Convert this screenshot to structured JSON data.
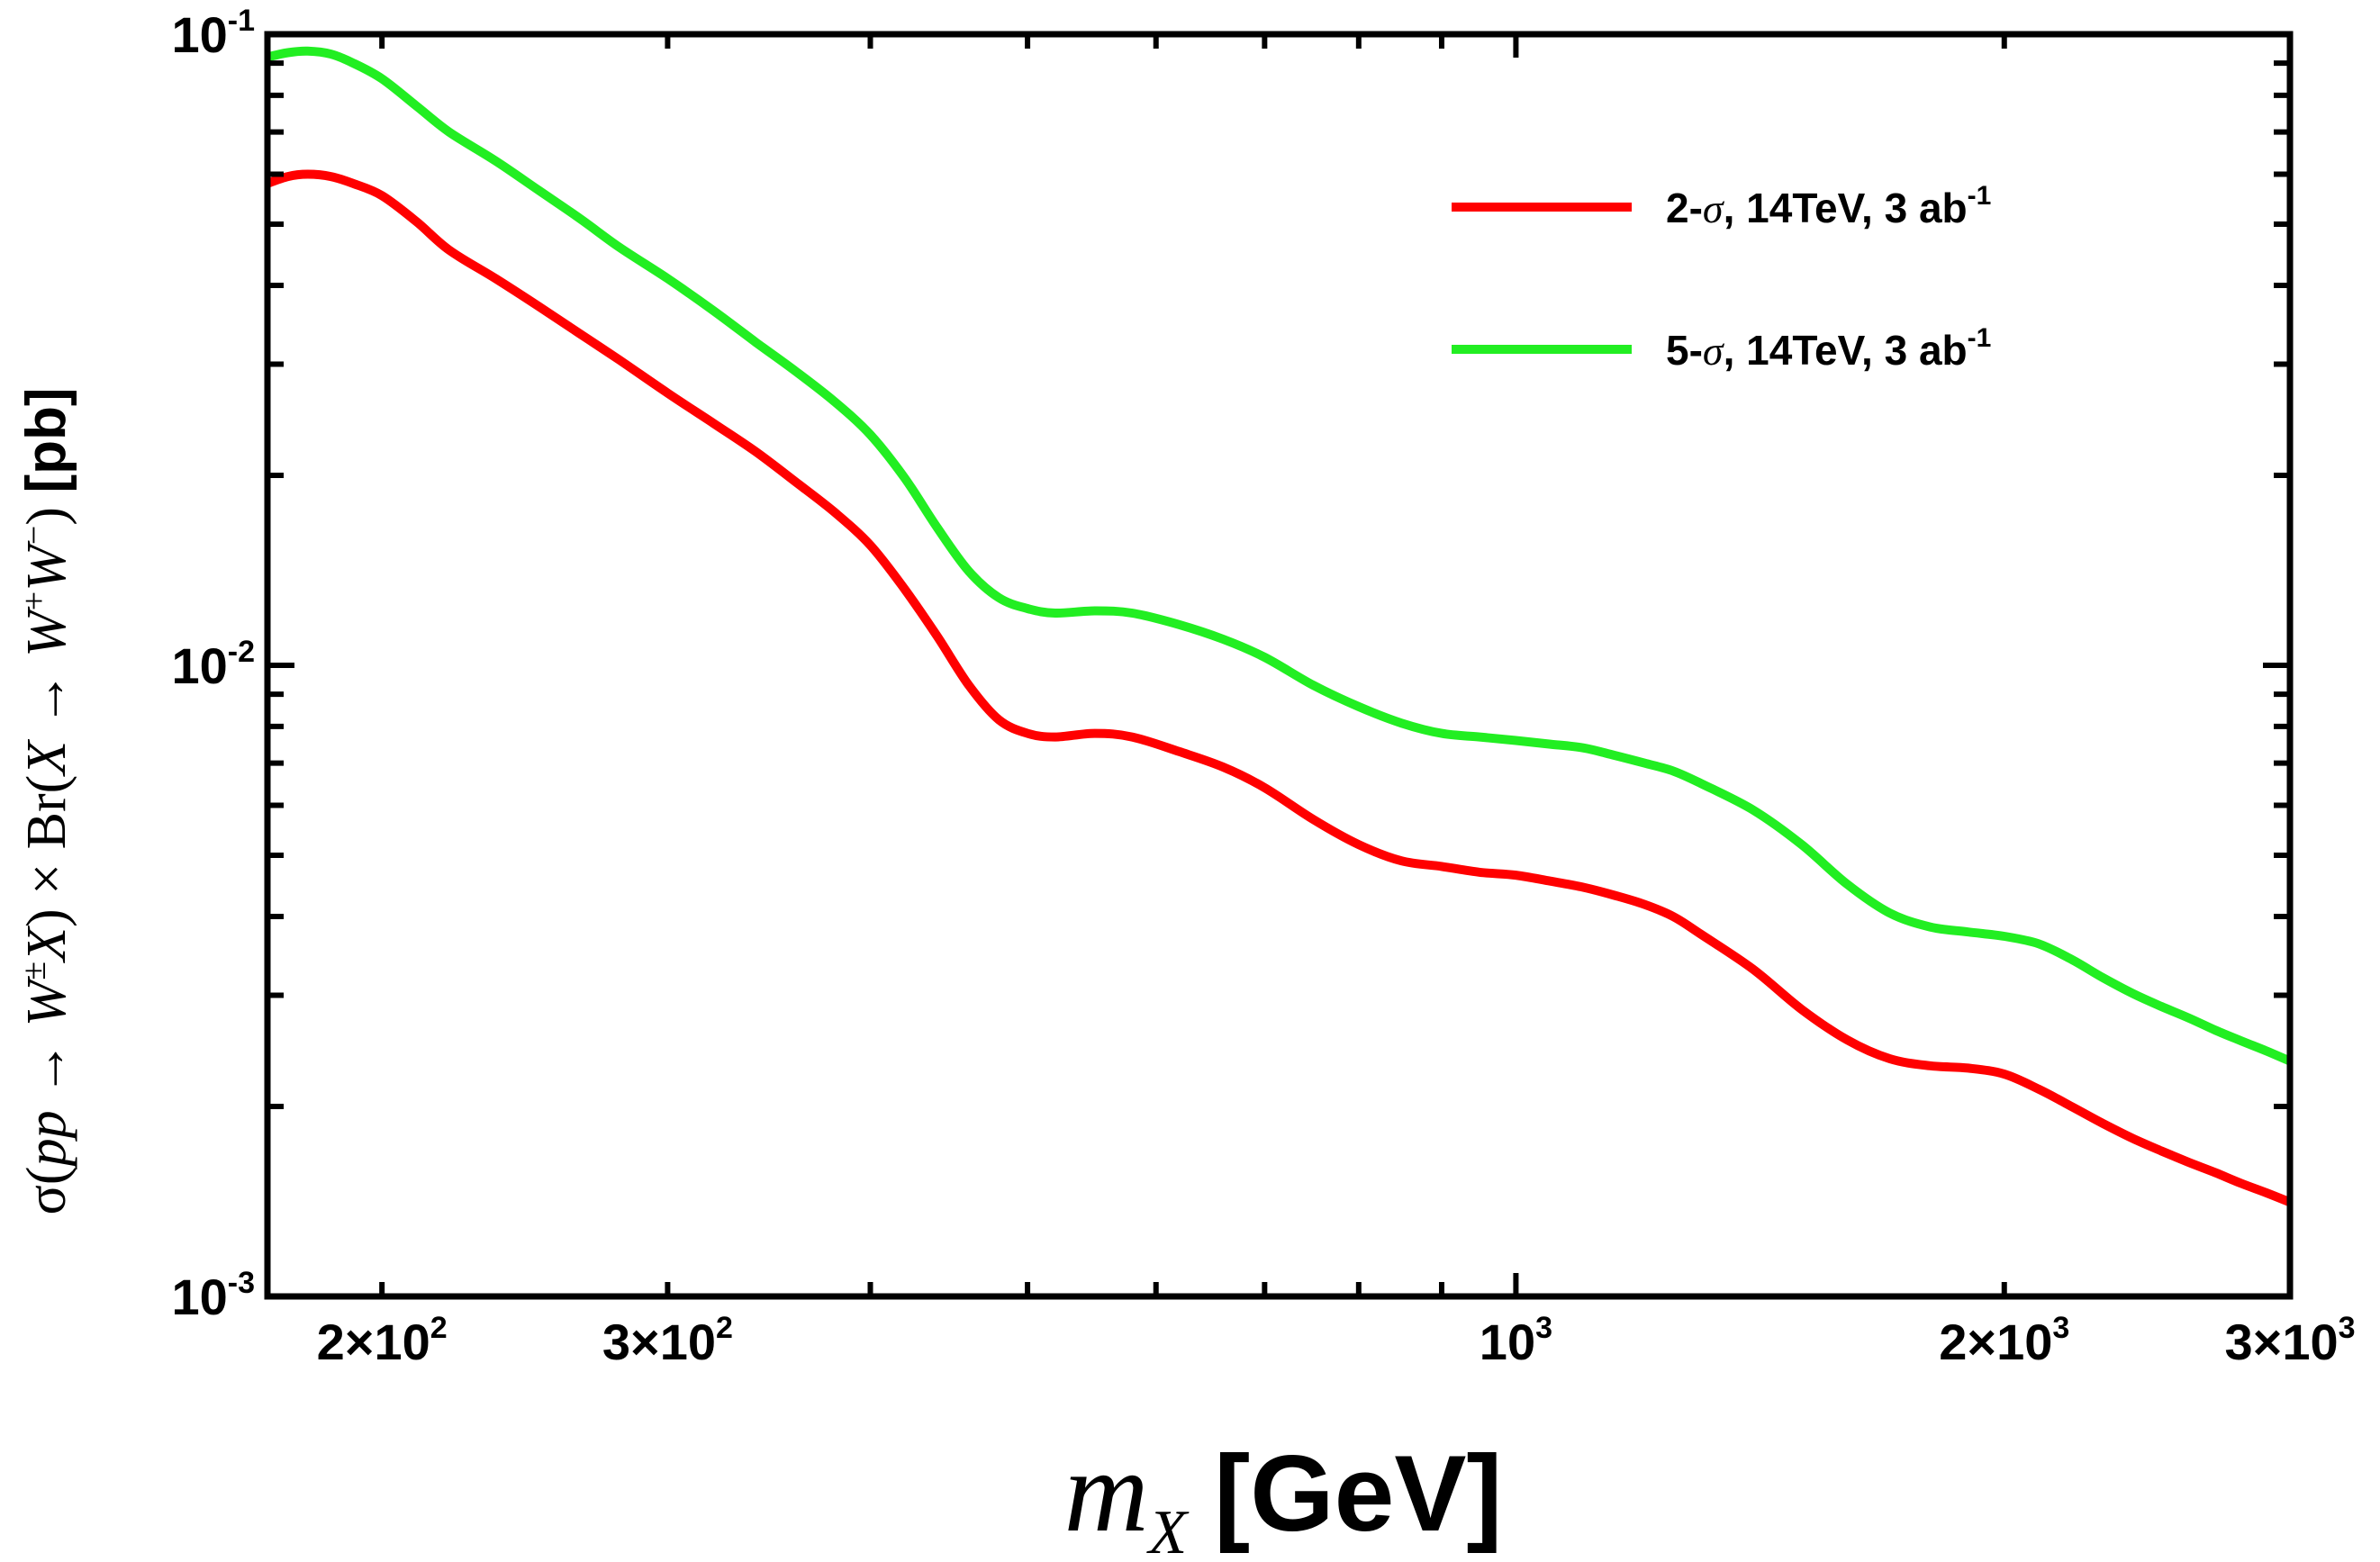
{
  "chart_data": {
    "type": "line",
    "xscale": "log",
    "yscale": "log",
    "xlim": [
      170,
      3000
    ],
    "ylim": [
      0.001,
      0.1
    ],
    "xlabel": {
      "var": "m",
      "sub": "X",
      "unit": "[GeV]"
    },
    "ylabel": {
      "p1": "σ(",
      "p2": "pp",
      "p3": " → ",
      "p4": "W",
      "p5": "±",
      "p6": "X",
      "p7": ")",
      "p8": " × Br(",
      "p9": "X",
      "p10": " → ",
      "p11": "W",
      "p12": "+",
      "p13": "W",
      "p14": "−",
      "p15": ") ",
      "p16": "[pb]"
    },
    "x_ticks": [
      {
        "value": 200,
        "mant": "2×10",
        "exp": "2"
      },
      {
        "value": 300,
        "mant": "3×10",
        "exp": "2"
      },
      {
        "value": 1000,
        "mant": "10",
        "exp": "3"
      },
      {
        "value": 2000,
        "mant": "2×10",
        "exp": "3"
      },
      {
        "value": 3000,
        "mant": "3×10",
        "exp": "3"
      }
    ],
    "y_ticks": [
      {
        "value": 0.1,
        "mant": "10",
        "exp": "-1"
      },
      {
        "value": 0.01,
        "mant": "10",
        "exp": "-2"
      },
      {
        "value": 0.001,
        "mant": "10",
        "exp": "-3"
      }
    ],
    "legend_placement": "top-right",
    "grid": false,
    "series": [
      {
        "name": "2-σ, 14TeV, 3 ab-1",
        "legend": {
          "a": "2-",
          "sigma": "σ",
          "b": ", 14TeV, 3 ab",
          "sup": "-1"
        },
        "color": "#ff0000",
        "x": [
          170,
          175,
          180,
          186,
          192,
          200,
          210,
          220,
          235,
          250,
          265,
          280,
          300,
          320,
          340,
          360,
          380,
          400,
          420,
          440,
          460,
          480,
          500,
          520,
          550,
          580,
          620,
          660,
          700,
          750,
          800,
          850,
          900,
          950,
          1000,
          1050,
          1100,
          1150,
          1200,
          1250,
          1300,
          1400,
          1500,
          1600,
          1700,
          1800,
          1900,
          2000,
          2100,
          2200,
          2300,
          2400,
          2500,
          2600,
          2700,
          2800,
          2900,
          3000
        ],
        "y": [
          0.058,
          0.0595,
          0.06,
          0.0595,
          0.058,
          0.0555,
          0.0505,
          0.0455,
          0.041,
          0.037,
          0.0335,
          0.0305,
          0.027,
          0.0242,
          0.0218,
          0.0195,
          0.0175,
          0.0155,
          0.0132,
          0.0111,
          0.0093,
          0.0082,
          0.0078,
          0.0077,
          0.0078,
          0.0077,
          0.0073,
          0.0069,
          0.0064,
          0.0057,
          0.0052,
          0.0049,
          0.0048,
          0.0047,
          0.00465,
          0.00455,
          0.00445,
          0.00432,
          0.00418,
          0.004,
          0.00375,
          0.0033,
          0.00285,
          0.00255,
          0.00238,
          0.00232,
          0.0023,
          0.00225,
          0.00213,
          0.002,
          0.00188,
          0.00178,
          0.0017,
          0.00163,
          0.00157,
          0.00151,
          0.00146,
          0.00141
        ]
      },
      {
        "name": "5-σ, 14TeV, 3 ab-1",
        "legend": {
          "a": "5-",
          "sigma": "σ",
          "b": ", 14TeV, 3 ab",
          "sup": "-1"
        },
        "color": "#22ee22",
        "x": [
          170,
          175,
          180,
          186,
          192,
          200,
          210,
          220,
          235,
          250,
          265,
          280,
          300,
          320,
          340,
          360,
          380,
          400,
          420,
          440,
          460,
          480,
          500,
          520,
          550,
          580,
          620,
          660,
          700,
          750,
          800,
          850,
          900,
          950,
          1000,
          1050,
          1100,
          1150,
          1200,
          1250,
          1300,
          1400,
          1500,
          1600,
          1700,
          1800,
          1900,
          2000,
          2100,
          2200,
          2300,
          2400,
          2500,
          2600,
          2700,
          2800,
          2900,
          3000
        ],
        "y": [
          0.092,
          0.0935,
          0.094,
          0.093,
          0.09,
          0.085,
          0.077,
          0.07,
          0.063,
          0.0565,
          0.051,
          0.046,
          0.041,
          0.0365,
          0.0325,
          0.0292,
          0.0262,
          0.0232,
          0.0198,
          0.0165,
          0.0141,
          0.0128,
          0.0123,
          0.0121,
          0.0122,
          0.0121,
          0.0116,
          0.011,
          0.0103,
          0.0093,
          0.0086,
          0.0081,
          0.0078,
          0.0077,
          0.0076,
          0.0075,
          0.0074,
          0.0072,
          0.007,
          0.0068,
          0.0065,
          0.0059,
          0.0052,
          0.0045,
          0.00405,
          0.00385,
          0.00378,
          0.00372,
          0.00362,
          0.00342,
          0.0032,
          0.00302,
          0.00288,
          0.00276,
          0.00264,
          0.00254,
          0.00245,
          0.00236
        ]
      }
    ]
  }
}
